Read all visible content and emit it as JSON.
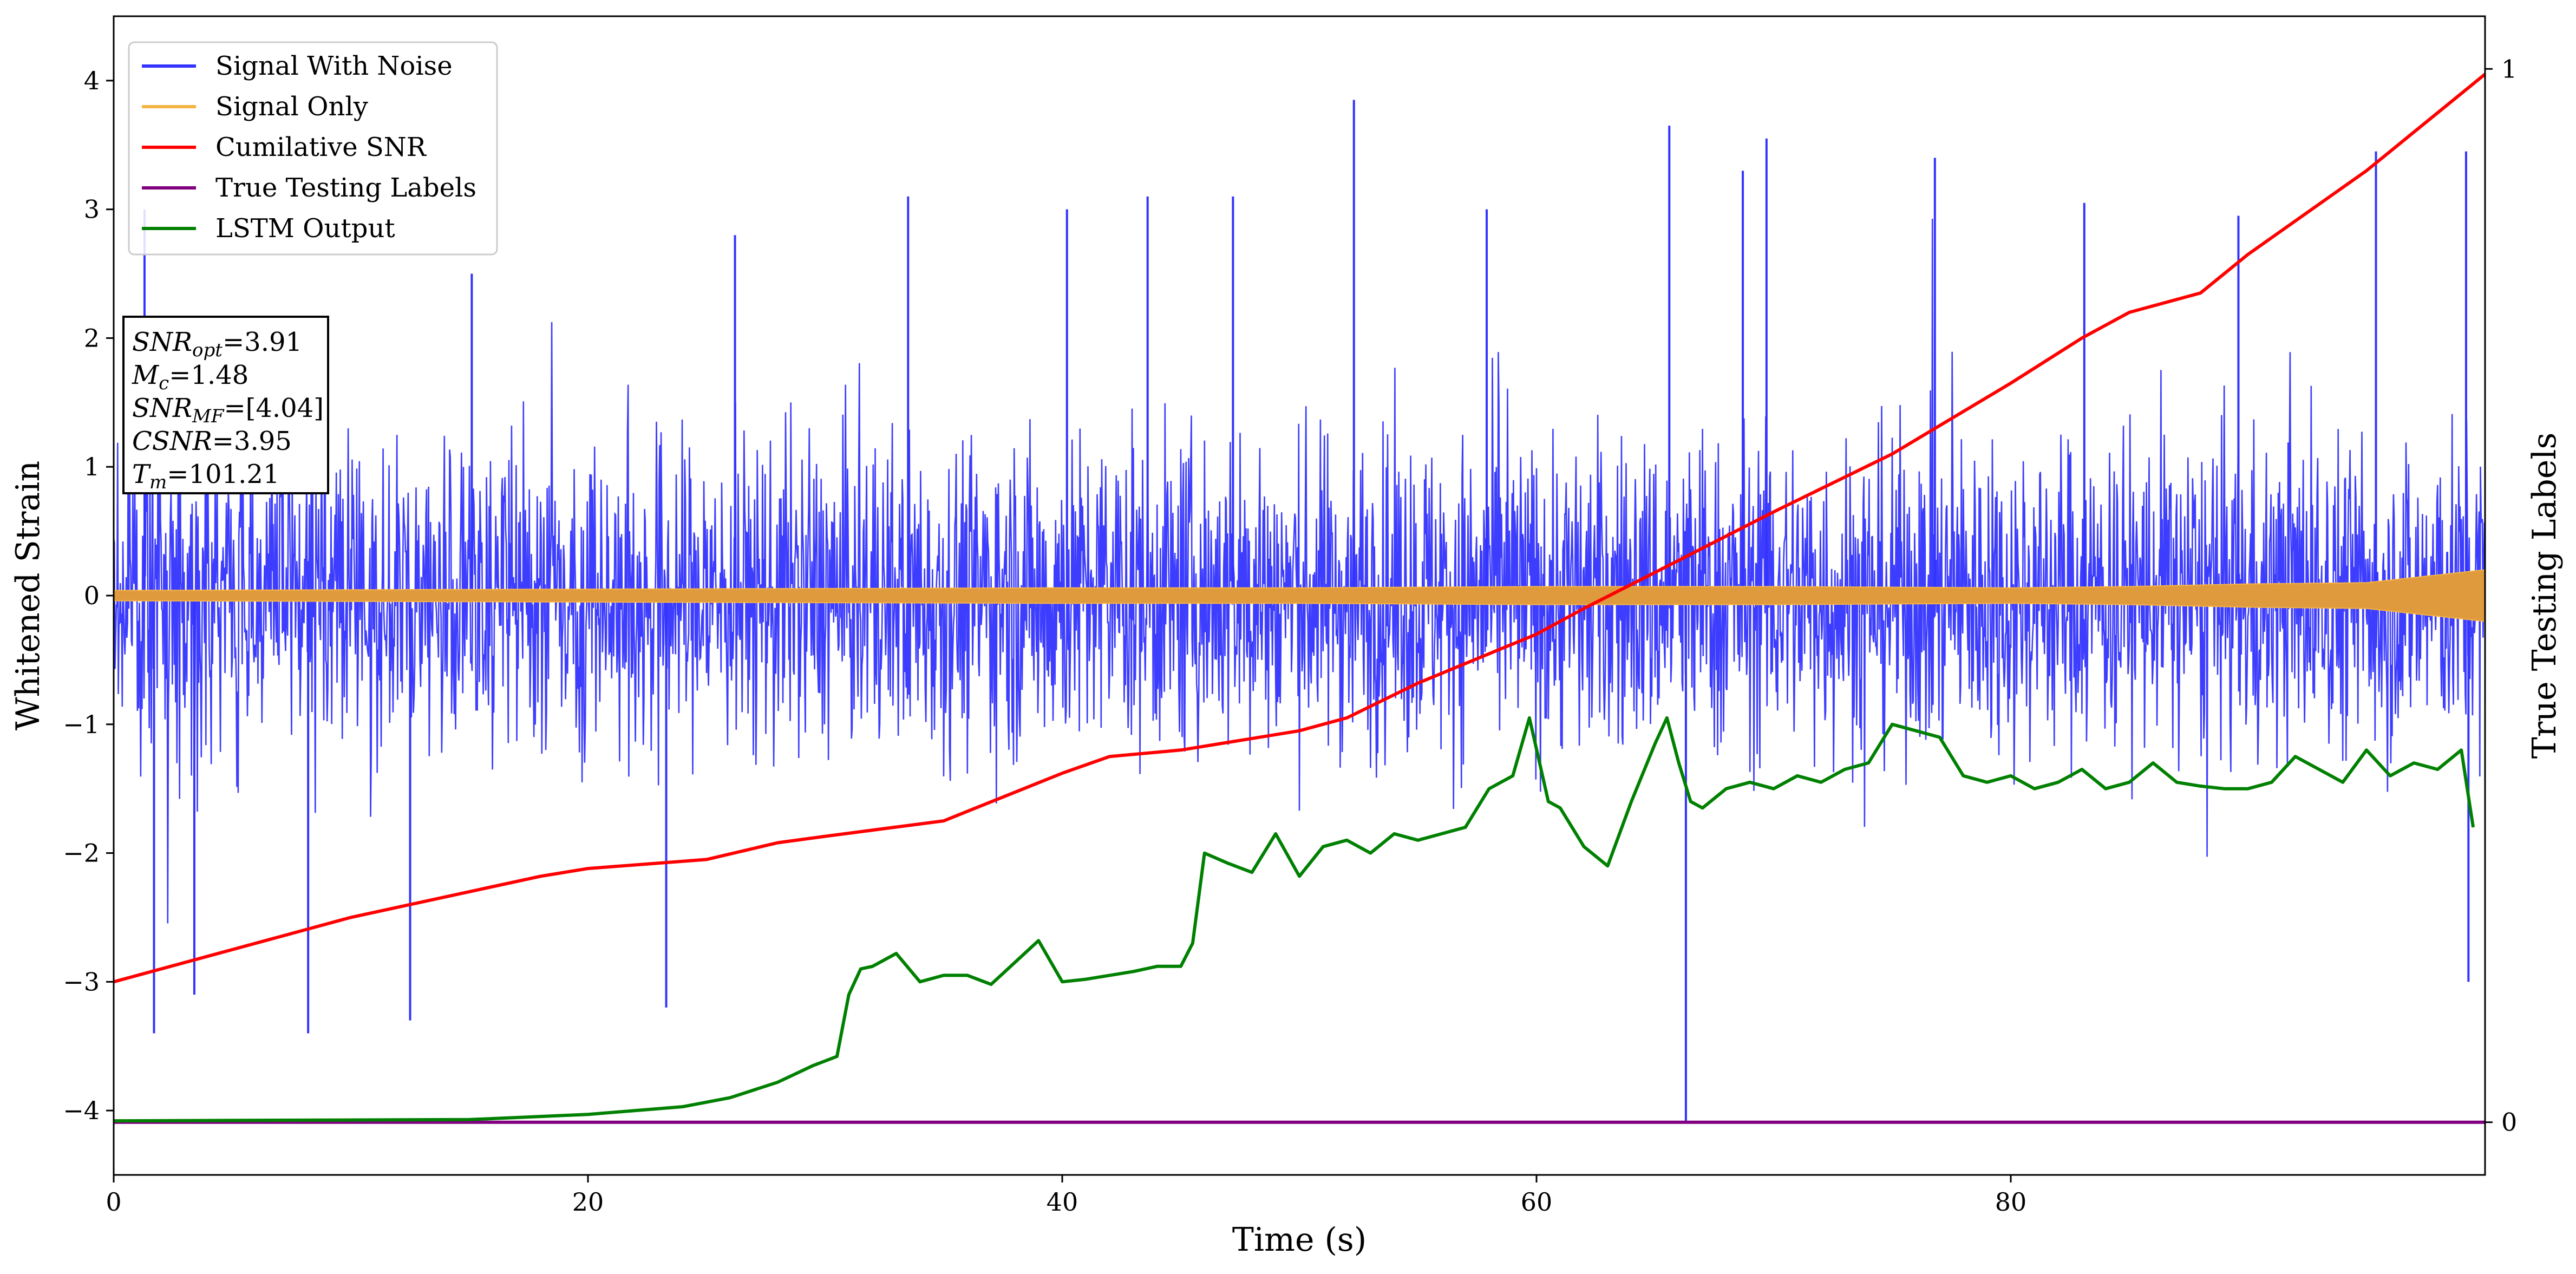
{
  "chart_data": {
    "type": "line",
    "xlabel": "Time (s)",
    "ylabel": "Whitened Strain",
    "y2label": "True Testing Labels",
    "xlim": [
      0,
      100
    ],
    "ylim": [
      -4.5,
      4.5
    ],
    "y2lim": [
      -0.05,
      1.05
    ],
    "x_ticks": [
      0,
      20,
      40,
      60,
      80
    ],
    "x_tick_labels": [
      "0",
      "20",
      "40",
      "60",
      "80"
    ],
    "y_ticks": [
      4,
      3,
      2,
      1,
      0,
      -1,
      -2,
      -3,
      -4
    ],
    "y_tick_labels": [
      "4",
      "3",
      "2",
      "1",
      "0",
      "−1",
      "−2",
      "−3",
      "−4"
    ],
    "y2_ticks": [
      1,
      0
    ],
    "y2_tick_labels": [
      "1",
      "0"
    ],
    "legend_position": "top-left",
    "legend": [
      {
        "label": "Signal With Noise",
        "color": "#3333ff"
      },
      {
        "label": "Signal Only",
        "color": "#f5b342"
      },
      {
        "label": "Cumilative SNR",
        "color": "#ff0000"
      },
      {
        "label": "True Testing Labels",
        "color": "#800080"
      },
      {
        "label": "LSTM Output",
        "color": "#008000"
      }
    ],
    "info_box": {
      "position": "upper-left",
      "lines": [
        {
          "sym": "SNR",
          "sub": "opt",
          "value": "=3.91"
        },
        {
          "sym": "M",
          "sub": "c",
          "value": "=1.48"
        },
        {
          "sym": "SNR",
          "sub": "MF",
          "value": "=[4.04]"
        },
        {
          "sym": "CSNR",
          "sub": "",
          "value": "=3.95"
        },
        {
          "sym": "T",
          "sub": "m",
          "value": "=101.21"
        }
      ]
    },
    "series": [
      {
        "name": "Signal With Noise",
        "color": "#3333ff",
        "kind": "noise",
        "x_range": [
          0,
          100
        ],
        "typical_range": [
          -2.0,
          2.0
        ],
        "spikes": [
          {
            "x": 1.3,
            "y": 3.0
          },
          {
            "x": 1.7,
            "y": -3.4
          },
          {
            "x": 3.4,
            "y": -3.1
          },
          {
            "x": 8.2,
            "y": -3.4
          },
          {
            "x": 12.5,
            "y": -3.3
          },
          {
            "x": 15.1,
            "y": 2.5
          },
          {
            "x": 23.3,
            "y": -3.2
          },
          {
            "x": 26.2,
            "y": 2.8
          },
          {
            "x": 33.5,
            "y": 3.1
          },
          {
            "x": 40.2,
            "y": 3.0
          },
          {
            "x": 43.6,
            "y": 3.1
          },
          {
            "x": 47.2,
            "y": 3.1
          },
          {
            "x": 52.3,
            "y": 3.85
          },
          {
            "x": 57.9,
            "y": 3.0
          },
          {
            "x": 65.6,
            "y": 3.65
          },
          {
            "x": 66.3,
            "y": -4.1
          },
          {
            "x": 68.7,
            "y": 3.3
          },
          {
            "x": 69.7,
            "y": 3.55
          },
          {
            "x": 76.8,
            "y": 3.4
          },
          {
            "x": 83.1,
            "y": 3.05
          },
          {
            "x": 89.6,
            "y": 2.95
          },
          {
            "x": 95.4,
            "y": 3.45
          },
          {
            "x": 99.2,
            "y": 3.45
          },
          {
            "x": 99.3,
            "y": -3.0
          }
        ]
      },
      {
        "name": "Signal Only",
        "color": "#f5b342",
        "kind": "envelope",
        "x": [
          0,
          20,
          40,
          50,
          60,
          70,
          80,
          85,
          90,
          95,
          100
        ],
        "amplitude": [
          0.04,
          0.05,
          0.06,
          0.06,
          0.07,
          0.07,
          0.06,
          0.07,
          0.09,
          0.1,
          0.2
        ]
      },
      {
        "name": "Cumilative SNR",
        "color": "#ff0000",
        "kind": "line",
        "x": [
          0,
          5,
          10,
          15,
          18,
          20,
          25,
          28,
          30,
          35,
          40,
          42,
          45,
          50,
          52,
          55,
          60,
          62,
          65,
          70,
          75,
          80,
          83,
          85,
          88,
          90,
          95,
          100
        ],
        "y": [
          -3.0,
          -2.75,
          -2.5,
          -2.3,
          -2.18,
          -2.12,
          -2.05,
          -1.92,
          -1.87,
          -1.75,
          -1.38,
          -1.25,
          -1.2,
          -1.05,
          -0.95,
          -0.68,
          -0.3,
          -0.1,
          0.18,
          0.65,
          1.1,
          1.65,
          2.0,
          2.2,
          2.35,
          2.65,
          3.3,
          4.05
        ]
      },
      {
        "name": "True Testing Labels",
        "color": "#800080",
        "kind": "line",
        "axis": "right",
        "x": [
          0,
          100
        ],
        "y": [
          0,
          0
        ]
      },
      {
        "name": "LSTM Output",
        "color": "#008000",
        "kind": "line",
        "axis": "left",
        "x": [
          0,
          15,
          20,
          22,
          24,
          26,
          28,
          29.5,
          30.5,
          31,
          31.5,
          32,
          33,
          34,
          35,
          36,
          37,
          38,
          39,
          40,
          41,
          42,
          43,
          44,
          45,
          45.5,
          46,
          47,
          48,
          49,
          50,
          51,
          52,
          53,
          54,
          55,
          56,
          57,
          58,
          59,
          59.7,
          60.5,
          61,
          62,
          63,
          64,
          65,
          65.5,
          66,
          66.5,
          67,
          68,
          69,
          70,
          71,
          72,
          73,
          74,
          75,
          76,
          77,
          78,
          79,
          80,
          81,
          82,
          83,
          84,
          85,
          86,
          87,
          88,
          89,
          90,
          91,
          92,
          93,
          94,
          95,
          96,
          97,
          98,
          99,
          99.5
        ],
        "y": [
          -4.08,
          -4.07,
          -4.03,
          -4.0,
          -3.97,
          -3.9,
          -3.78,
          -3.65,
          -3.58,
          -3.1,
          -2.9,
          -2.88,
          -2.78,
          -3.0,
          -2.95,
          -2.95,
          -3.02,
          -2.85,
          -2.68,
          -3.0,
          -2.98,
          -2.95,
          -2.92,
          -2.88,
          -2.88,
          -2.7,
          -2.0,
          -2.08,
          -2.15,
          -1.85,
          -2.18,
          -1.95,
          -1.9,
          -2.0,
          -1.85,
          -1.9,
          -1.85,
          -1.8,
          -1.5,
          -1.4,
          -0.95,
          -1.6,
          -1.65,
          -1.95,
          -2.1,
          -1.6,
          -1.15,
          -0.95,
          -1.3,
          -1.6,
          -1.65,
          -1.5,
          -1.45,
          -1.5,
          -1.4,
          -1.45,
          -1.35,
          -1.3,
          -1.0,
          -1.05,
          -1.1,
          -1.4,
          -1.45,
          -1.4,
          -1.5,
          -1.45,
          -1.35,
          -1.5,
          -1.45,
          -1.3,
          -1.45,
          -1.48,
          -1.5,
          -1.5,
          -1.45,
          -1.25,
          -1.35,
          -1.45,
          -1.2,
          -1.4,
          -1.3,
          -1.35,
          -1.2,
          -1.8
        ]
      }
    ]
  }
}
